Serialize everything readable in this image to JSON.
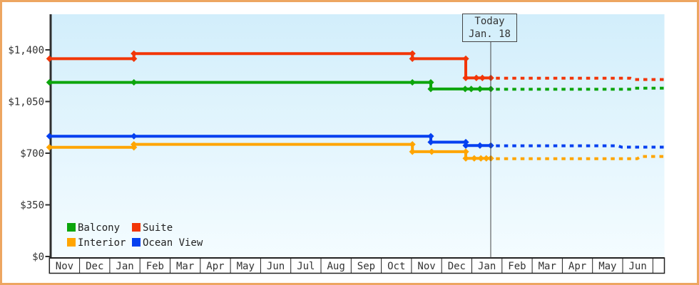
{
  "frame": {
    "border_color": "#eda661"
  },
  "chart_data": {
    "type": "line",
    "title": "",
    "xlabel": "",
    "ylabel": "",
    "x_axis": {
      "tick_labels": [
        "Nov",
        "Dec",
        "Jan",
        "Feb",
        "Mar",
        "Apr",
        "May",
        "Jun",
        "Jul",
        "Aug",
        "Sep",
        "Oct",
        "Nov",
        "Dec",
        "Jan",
        "Feb",
        "Mar",
        "Apr",
        "May",
        "Jun"
      ]
    },
    "y_axis": {
      "tick_labels": [
        "$0",
        "$350",
        "$700",
        "$1,050",
        "$1,400"
      ],
      "tick_values": [
        0,
        350,
        700,
        1050,
        1400
      ],
      "range": [
        0,
        1650
      ],
      "grid": false
    },
    "today_marker": {
      "line1": "Today",
      "line2": "Jan. 18",
      "x_month": 14.63
    },
    "plot_bg_top": "#d2eefb",
    "plot_bg_bottom": "#f4fcff",
    "axis_color": "#2f2f2f",
    "legend_position": "bottom-left",
    "legend": [
      {
        "label": "Balcony",
        "color": "#0ca50c"
      },
      {
        "label": "Suite",
        "color": "#f23608"
      },
      {
        "label": "Interior",
        "color": "#ffa500"
      },
      {
        "label": "Ocean View",
        "color": "#0540f0"
      }
    ],
    "series": [
      {
        "name": "Balcony",
        "color": "#0ca50c",
        "points": [
          [
            0,
            1180
          ],
          [
            12.64,
            1180
          ],
          [
            12.64,
            1135
          ],
          [
            14.63,
            1135
          ]
        ],
        "markers": [
          [
            0,
            1180
          ],
          [
            2.8,
            1180
          ],
          [
            12.03,
            1180
          ],
          [
            12.64,
            1180
          ],
          [
            12.64,
            1135
          ],
          [
            13.78,
            1135
          ],
          [
            13.98,
            1135
          ],
          [
            14.27,
            1135
          ],
          [
            14.63,
            1135
          ]
        ],
        "forecast": [
          [
            14.8,
            1133
          ],
          [
            19.29,
            1133
          ],
          [
            19.41,
            1141
          ],
          [
            20.37,
            1141
          ]
        ]
      },
      {
        "name": "Suite",
        "color": "#f23608",
        "points": [
          [
            0,
            1340
          ],
          [
            2.8,
            1340
          ],
          [
            2.8,
            1375
          ],
          [
            12.03,
            1375
          ],
          [
            12.03,
            1340
          ],
          [
            13.8,
            1340
          ],
          [
            13.8,
            1210
          ],
          [
            14.63,
            1210
          ]
        ],
        "markers": [
          [
            0,
            1340
          ],
          [
            2.8,
            1340
          ],
          [
            2.8,
            1375
          ],
          [
            12.03,
            1375
          ],
          [
            12.03,
            1340
          ],
          [
            13.8,
            1340
          ],
          [
            13.8,
            1210
          ],
          [
            14.15,
            1210
          ],
          [
            14.35,
            1210
          ],
          [
            14.63,
            1210
          ]
        ],
        "forecast": [
          [
            14.8,
            1208
          ],
          [
            19.26,
            1208
          ],
          [
            19.39,
            1199
          ],
          [
            20.37,
            1199
          ]
        ]
      },
      {
        "name": "Interior",
        "color": "#ffa500",
        "points": [
          [
            0,
            740
          ],
          [
            2.8,
            740
          ],
          [
            2.8,
            760
          ],
          [
            12.03,
            760
          ],
          [
            12.03,
            710
          ],
          [
            13.8,
            710
          ],
          [
            13.8,
            665
          ],
          [
            14.63,
            665
          ]
        ],
        "markers": [
          [
            0,
            740
          ],
          [
            2.8,
            740
          ],
          [
            2.8,
            760
          ],
          [
            12.03,
            760
          ],
          [
            12.03,
            710
          ],
          [
            12.67,
            710
          ],
          [
            13.8,
            710
          ],
          [
            13.8,
            665
          ],
          [
            14.08,
            665
          ],
          [
            14.3,
            665
          ],
          [
            14.48,
            665
          ],
          [
            14.63,
            665
          ]
        ],
        "forecast": [
          [
            14.8,
            663
          ],
          [
            19.48,
            663
          ],
          [
            19.61,
            678
          ],
          [
            20.37,
            678
          ]
        ]
      },
      {
        "name": "Ocean View",
        "color": "#0540f0",
        "points": [
          [
            0,
            815
          ],
          [
            12.64,
            815
          ],
          [
            12.64,
            775
          ],
          [
            13.8,
            775
          ],
          [
            13.8,
            752
          ],
          [
            14.63,
            752
          ]
        ],
        "markers": [
          [
            0,
            815
          ],
          [
            2.8,
            815
          ],
          [
            12.64,
            815
          ],
          [
            12.64,
            775
          ],
          [
            13.8,
            775
          ],
          [
            13.8,
            752
          ],
          [
            14.27,
            752
          ],
          [
            14.63,
            752
          ]
        ],
        "forecast": [
          [
            14.8,
            750
          ],
          [
            18.83,
            750
          ],
          [
            18.97,
            741
          ],
          [
            20.37,
            741
          ]
        ]
      }
    ]
  }
}
